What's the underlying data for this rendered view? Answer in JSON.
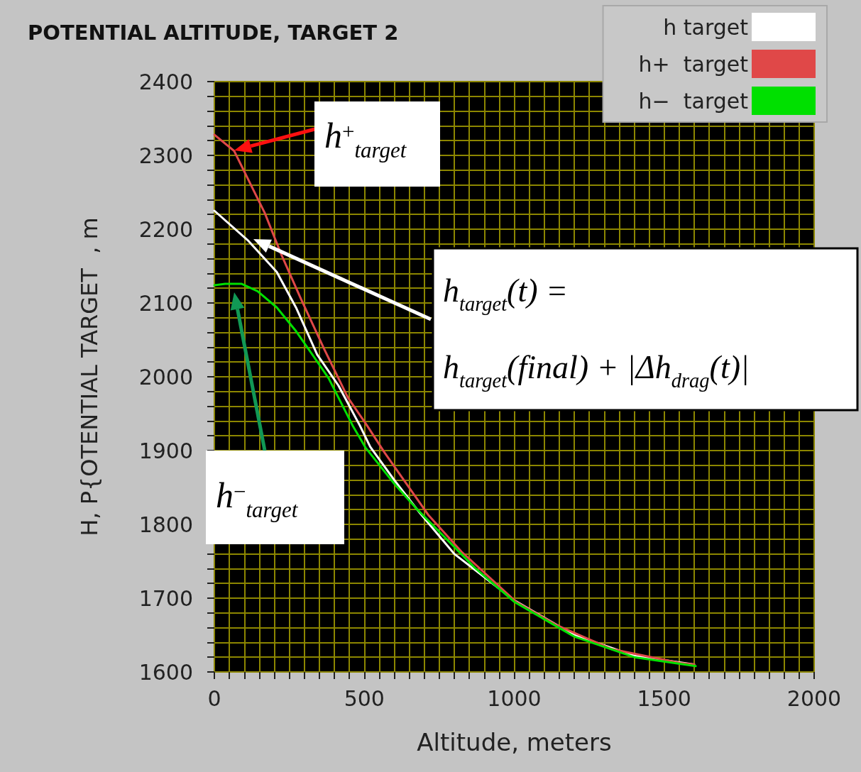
{
  "chart_data": {
    "type": "line",
    "title": "POTENTIAL ALTITUDE, TARGET 2",
    "xlabel": "Altitude, meters",
    "ylabel": "H, P{OTENTIAL TARGET  , m",
    "xlim": [
      0,
      2000
    ],
    "xticks": [
      0,
      {
        "value": 50,
        "label": null
      },
      {
        "value": 100,
        "label": null
      },
      {
        "value": 150,
        "label": null
      },
      {
        "value": 200,
        "label": null
      },
      {
        "value": 250,
        "label": null
      },
      {
        "value": 300,
        "label": null
      },
      {
        "value": 350,
        "label": null
      },
      {
        "value": 400,
        "label": null
      },
      {
        "value": 450,
        "label": null
      },
      500,
      {
        "value": 550,
        "label": null
      },
      {
        "value": 600,
        "label": null
      },
      {
        "value": 650,
        "label": null
      },
      {
        "value": 700,
        "label": null
      },
      {
        "value": 750,
        "label": null
      },
      {
        "value": 800,
        "label": null
      },
      {
        "value": 850,
        "label": null
      },
      {
        "value": 900,
        "label": null
      },
      {
        "value": 950,
        "label": null
      },
      1000,
      {
        "value": 1050,
        "label": null
      },
      {
        "value": 1100,
        "label": null
      },
      {
        "value": 1150,
        "label": null
      },
      {
        "value": 1200,
        "label": null
      },
      {
        "value": 1250,
        "label": null
      },
      {
        "value": 1300,
        "label": null
      },
      {
        "value": 1350,
        "label": null
      },
      {
        "value": 1400,
        "label": null
      },
      {
        "value": 1450,
        "label": null
      },
      1500,
      {
        "value": 1550,
        "label": null
      },
      {
        "value": 1600,
        "label": null
      },
      {
        "value": 1650,
        "label": null
      },
      {
        "value": 1700,
        "label": null
      },
      {
        "value": 1750,
        "label": null
      },
      {
        "value": 1800,
        "label": null
      },
      {
        "value": 1850,
        "label": null
      },
      {
        "value": 1900,
        "label": null
      },
      {
        "value": 1950,
        "label": null
      },
      2000
    ],
    "ylim": [
      1600,
      2400
    ],
    "yticks": [
      1600,
      {
        "value": 1620,
        "label": null
      },
      {
        "value": 1640,
        "label": null
      },
      {
        "value": 1660,
        "label": null
      },
      {
        "value": 1680,
        "label": null
      },
      1700,
      {
        "value": 1720,
        "label": null
      },
      {
        "value": 1740,
        "label": null
      },
      {
        "value": 1760,
        "label": null
      },
      {
        "value": 1780,
        "label": null
      },
      1800,
      {
        "value": 1820,
        "label": null
      },
      {
        "value": 1840,
        "label": null
      },
      {
        "value": 1860,
        "label": null
      },
      {
        "value": 1880,
        "label": null
      },
      1900,
      {
        "value": 1920,
        "label": null
      },
      {
        "value": 1940,
        "label": null
      },
      {
        "value": 1960,
        "label": null
      },
      {
        "value": 1980,
        "label": null
      },
      2000,
      {
        "value": 2020,
        "label": null
      },
      {
        "value": 2040,
        "label": null
      },
      {
        "value": 2060,
        "label": null
      },
      {
        "value": 2080,
        "label": null
      },
      2100,
      {
        "value": 2120,
        "label": null
      },
      {
        "value": 2140,
        "label": null
      },
      {
        "value": 2160,
        "label": null
      },
      {
        "value": 2180,
        "label": null
      },
      2200,
      {
        "value": 2220,
        "label": null
      },
      {
        "value": 2240,
        "label": null
      },
      {
        "value": 2260,
        "label": null
      },
      {
        "value": 2280,
        "label": null
      },
      2300,
      {
        "value": 2320,
        "label": null
      },
      {
        "value": 2340,
        "label": null
      },
      {
        "value": 2360,
        "label": null
      },
      {
        "value": 2380,
        "label": null
      },
      2400
    ],
    "grid": true,
    "legend": "top right",
    "marker": "none",
    "line_style": "solid",
    "series": [
      {
        "name": "h target",
        "color": "#ffffff",
        "x": [
          0,
          114,
          208,
          272,
          343,
          414,
          485,
          520,
          600,
          686,
          800,
          1000,
          1200,
          1400,
          1600
        ],
        "values": [
          2225,
          2184,
          2142,
          2094,
          2030,
          1988,
          1934,
          1905,
          1860,
          1815,
          1760,
          1697,
          1650,
          1622,
          1610
        ]
      },
      {
        "name": "h+  target",
        "color": "#e04848",
        "x": [
          0,
          66,
          168,
          225,
          287,
          367,
          445,
          509,
          568,
          715,
          824,
          1006,
          1143,
          1325,
          1553,
          1600
        ],
        "values": [
          2328,
          2306,
          2222,
          2164,
          2107,
          2037,
          1972,
          1934,
          1897,
          1812,
          1763,
          1695,
          1663,
          1631,
          1612,
          1610
        ]
      },
      {
        "name": "h−  target",
        "color": "#00e000",
        "x": [
          0,
          36,
          90,
          144,
          208,
          272,
          327,
          381,
          461,
          504,
          600,
          670,
          869,
          1000,
          1200,
          1400,
          1605
        ],
        "values": [
          2124,
          2126,
          2126,
          2116,
          2094,
          2062,
          2030,
          1998,
          1934,
          1904,
          1855,
          1823,
          1741,
          1695,
          1648,
          1620,
          1608
        ]
      }
    ],
    "annotations": [
      "h$^{+}$$_{target}$",
      "h$_{target}$(t) =\nh$_{target}$(final) + |Δh$_{drag}$(t)|",
      "h$^{−}$$_{target}$"
    ]
  }
}
